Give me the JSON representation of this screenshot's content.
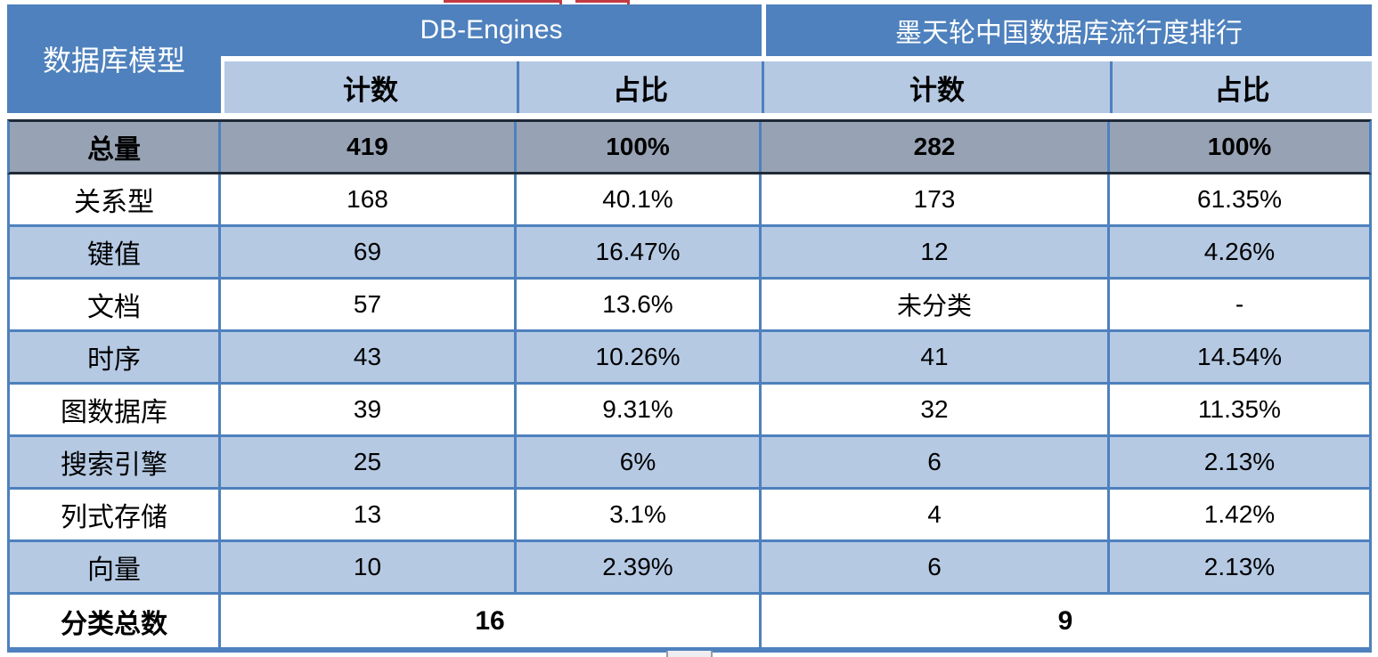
{
  "table": {
    "corner_header": "数据库模型",
    "groups": [
      {
        "title": "DB-Engines",
        "count_label": "计数",
        "share_label": "占比"
      },
      {
        "title": "墨天轮中国数据库流行度排行",
        "count_label": "计数",
        "share_label": "占比"
      }
    ],
    "total_row": {
      "label": "总量",
      "cells": [
        "419",
        "100%",
        "282",
        "100%"
      ]
    },
    "rows": [
      {
        "label": "关系型",
        "cells": [
          "168",
          "40.1%",
          "173",
          "61.35%"
        ]
      },
      {
        "label": "键值",
        "cells": [
          "69",
          "16.47%",
          "12",
          "4.26%"
        ]
      },
      {
        "label": "文档",
        "cells": [
          "57",
          "13.6%",
          "未分类",
          "-"
        ]
      },
      {
        "label": "时序",
        "cells": [
          "43",
          "10.26%",
          "41",
          "14.54%"
        ]
      },
      {
        "label": "图数据库",
        "cells": [
          "39",
          "9.31%",
          "32",
          "11.35%"
        ]
      },
      {
        "label": "搜索引擎",
        "cells": [
          "25",
          "6%",
          "6",
          "2.13%"
        ]
      },
      {
        "label": "列式存储",
        "cells": [
          "13",
          "3.1%",
          "4",
          "1.42%"
        ]
      },
      {
        "label": "向量",
        "cells": [
          "10",
          "2.39%",
          "6",
          "2.13%"
        ]
      }
    ],
    "summary_row": {
      "label": "分类总数",
      "dbengines_total": "16",
      "mtl_total": "9"
    }
  },
  "colors": {
    "header_blue": "#4E81BD",
    "light_blue_row": "#B5C9E3",
    "total_row_gray": "#97A3B4",
    "grid_blue": "#4E81BD",
    "dark_line": "#1F2A38",
    "red_artifact": "#C23B42",
    "header_text": "#FFFFFF",
    "body_text": "#000000"
  },
  "chart_data": {
    "type": "table",
    "title": "",
    "columns": [
      "数据库模型",
      "DB-Engines 计数",
      "DB-Engines 占比",
      "墨天轮中国数据库流行度排行 计数",
      "墨天轮中国数据库流行度排行 占比"
    ],
    "rows": [
      [
        "总量",
        "419",
        "100%",
        "282",
        "100%"
      ],
      [
        "关系型",
        "168",
        "40.1%",
        "173",
        "61.35%"
      ],
      [
        "键值",
        "69",
        "16.47%",
        "12",
        "4.26%"
      ],
      [
        "文档",
        "57",
        "13.6%",
        "未分类",
        "-"
      ],
      [
        "时序",
        "43",
        "10.26%",
        "41",
        "14.54%"
      ],
      [
        "图数据库",
        "39",
        "9.31%",
        "32",
        "11.35%"
      ],
      [
        "搜索引擎",
        "25",
        "6%",
        "6",
        "2.13%"
      ],
      [
        "列式存储",
        "13",
        "3.1%",
        "4",
        "1.42%"
      ],
      [
        "向量",
        "10",
        "2.39%",
        "6",
        "2.13%"
      ],
      [
        "分类总数",
        "16",
        "",
        "9",
        ""
      ]
    ]
  }
}
